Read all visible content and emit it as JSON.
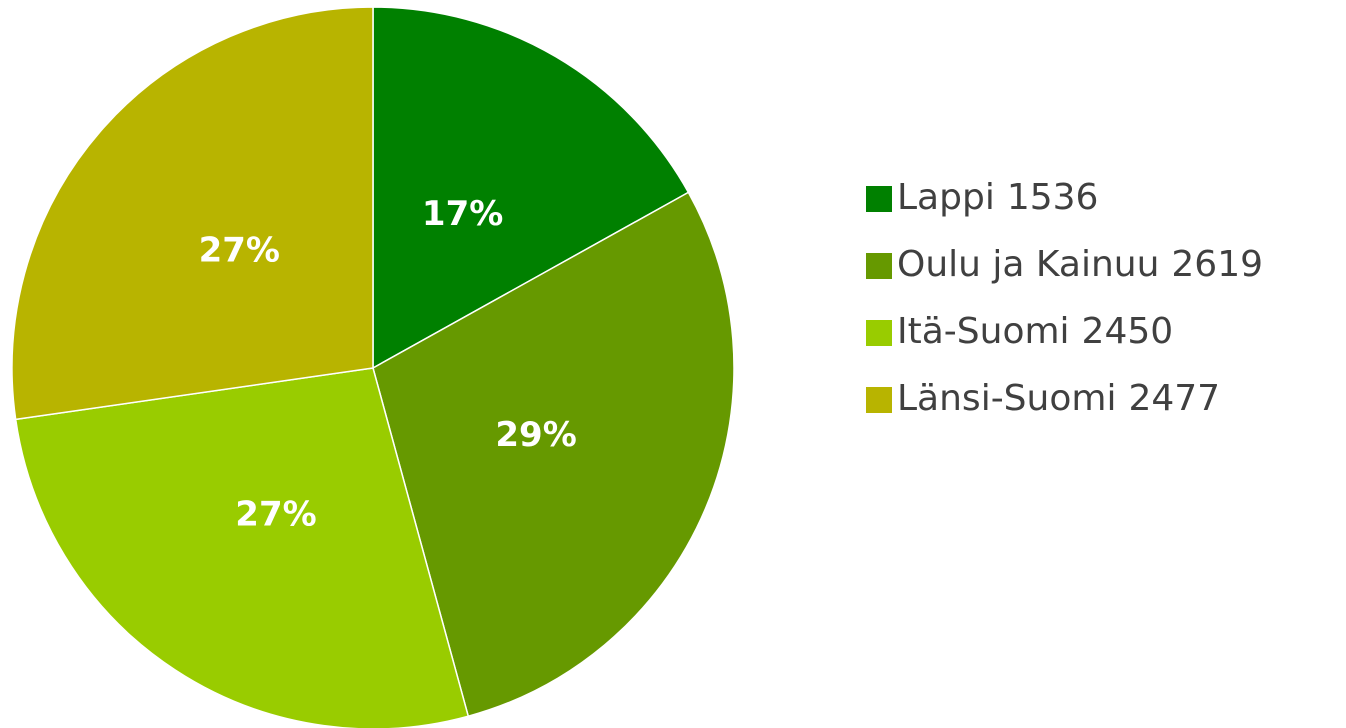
{
  "chart_data": {
    "type": "pie",
    "categories": [
      "Lappi",
      "Oulu ja Kainuu",
      "Itä-Suomi",
      "Länsi-Suomi"
    ],
    "values": [
      1536,
      2619,
      2450,
      2477
    ],
    "value_labels": [
      "17%",
      "29%",
      "27%",
      "27%"
    ],
    "colors": [
      "#008000",
      "#669900",
      "#99cc00",
      "#b8b400"
    ],
    "legend": "right"
  }
}
